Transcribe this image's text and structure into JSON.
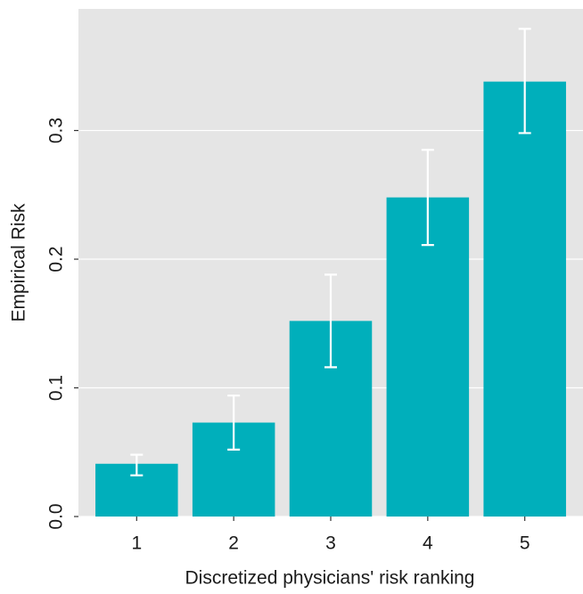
{
  "chart_data": {
    "type": "bar",
    "x_label": "Discretized physicians' risk ranking",
    "y_label": "Empirical Risk",
    "categories": [
      "1",
      "2",
      "3",
      "4",
      "5"
    ],
    "values": [
      0.041,
      0.073,
      0.152,
      0.248,
      0.338
    ],
    "lower": [
      0.032,
      0.052,
      0.116,
      0.211,
      0.298
    ],
    "upper": [
      0.048,
      0.094,
      0.188,
      0.285,
      0.379
    ],
    "color": "#00afbb",
    "error_color": "#ffffff",
    "ylim": [
      0,
      0.3945
    ],
    "yticks": [
      {
        "value": 0,
        "label": "0.0"
      },
      0.1,
      0.2,
      0.3
    ],
    "grid": true
  }
}
